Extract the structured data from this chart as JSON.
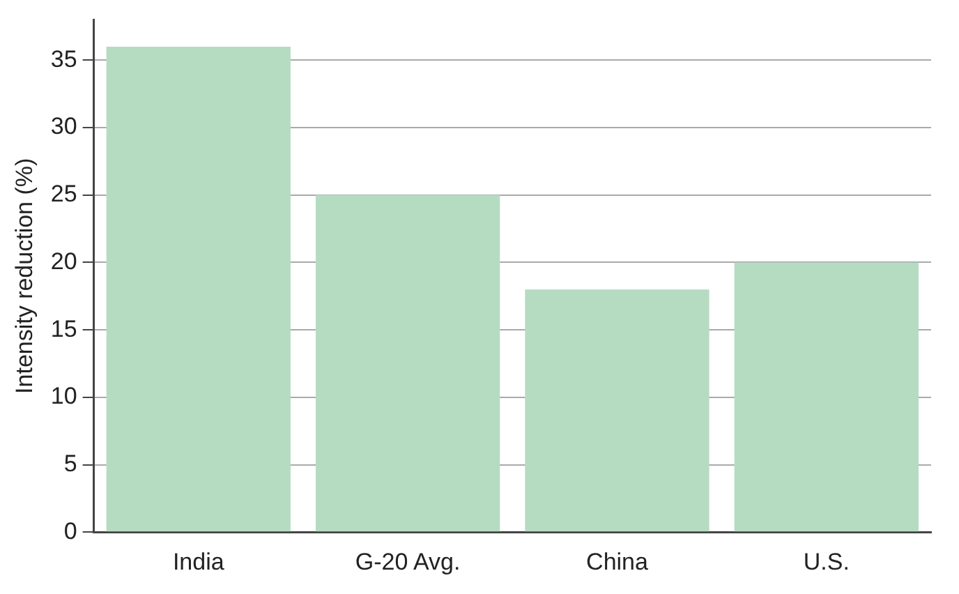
{
  "chart_data": {
    "type": "bar",
    "ylabel": "Intensity reduction (%)",
    "categories": [
      "India",
      "G-20 Avg.",
      "China",
      "U.S."
    ],
    "values": [
      36,
      25,
      18,
      20
    ],
    "color": "#b5dcc1",
    "ylim": [
      0,
      38
    ],
    "yticks": [
      0,
      5,
      10,
      15,
      20,
      25,
      30,
      35
    ],
    "grid": "y"
  }
}
